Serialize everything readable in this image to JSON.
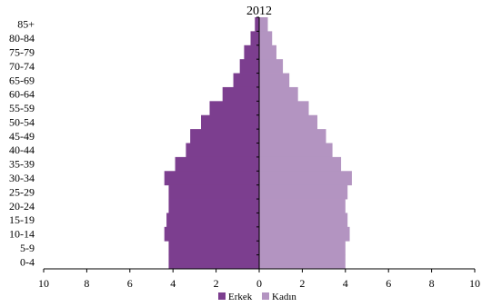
{
  "chart_data": {
    "type": "bar",
    "orientation": "horizontal",
    "layout": "population-pyramid",
    "title": "2012",
    "categories": [
      "85+",
      "80-84",
      "75-79",
      "70-74",
      "65-69",
      "60-64",
      "55-59",
      "50-54",
      "45-49",
      "40-44",
      "35-39",
      "30-34",
      "25-29",
      "20-24",
      "15-19",
      "10-14",
      "5-9",
      "0-4"
    ],
    "series": [
      {
        "name": "Erkek",
        "side": "left",
        "color": "#7c3e8f",
        "values": [
          0.2,
          0.4,
          0.7,
          0.9,
          1.2,
          1.7,
          2.3,
          2.7,
          3.2,
          3.4,
          3.9,
          4.4,
          4.2,
          4.2,
          4.3,
          4.4,
          4.2,
          4.2
        ]
      },
      {
        "name": "Kadın",
        "side": "right",
        "color": "#b394c1",
        "values": [
          0.4,
          0.6,
          0.8,
          1.1,
          1.4,
          1.8,
          2.3,
          2.7,
          3.1,
          3.4,
          3.8,
          4.3,
          4.1,
          4.0,
          4.1,
          4.2,
          4.0,
          4.0
        ]
      }
    ],
    "xlim": [
      -10,
      10
    ],
    "xticks": [
      -10,
      -8,
      -6,
      -4,
      -2,
      0,
      2,
      4,
      6,
      8,
      10
    ],
    "xtick_labels": [
      "10",
      "8",
      "6",
      "4",
      "2",
      "0",
      "2",
      "4",
      "6",
      "8",
      "10"
    ],
    "grid": false,
    "legend_position": "bottom-center"
  }
}
